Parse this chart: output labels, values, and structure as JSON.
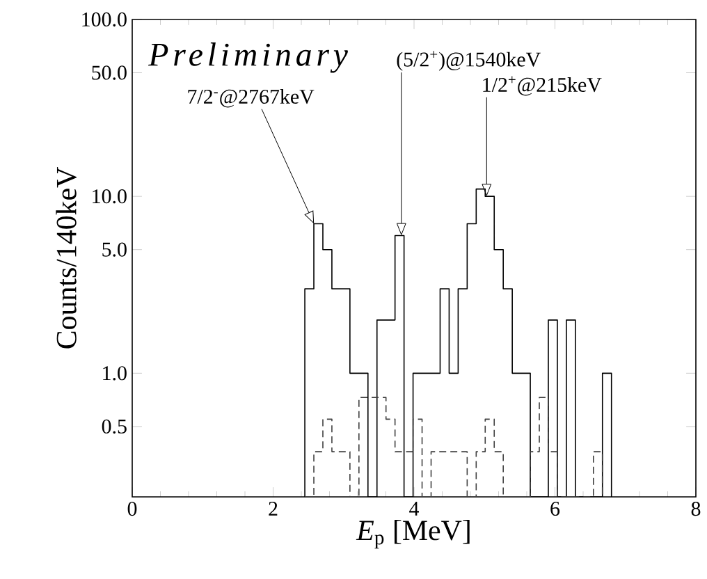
{
  "chart_data": {
    "type": "histogram",
    "xlabel": "*E*$_{p}$ [MeV]",
    "ylabel": "Counts/140keV",
    "log": "y",
    "xlim": [
      0,
      8
    ],
    "xticks": [
      0,
      2,
      4,
      6,
      8
    ],
    "ylim": [
      0.2,
      100
    ],
    "yticks": [
      {
        "value": 0.5,
        "label": "0.5"
      },
      {
        "value": 1,
        "label": "1.0"
      },
      {
        "value": 5,
        "label": "5.0"
      },
      {
        "value": 10,
        "label": "10.0"
      },
      {
        "value": 50,
        "label": "50.0"
      },
      {
        "value": 100,
        "label": "100.0"
      }
    ],
    "bins": [
      2.45,
      2.578,
      2.706,
      2.834,
      2.962,
      3.09,
      3.218,
      3.346,
      3.474,
      3.602,
      3.73,
      3.858,
      3.986,
      4.114,
      4.242,
      4.37,
      4.498,
      4.626,
      4.754,
      4.882,
      5.01,
      5.138,
      5.266,
      5.394,
      5.522,
      5.65,
      5.778,
      5.906,
      6.034,
      6.162,
      6.29,
      6.418,
      6.546,
      6.674,
      6.802
    ],
    "series": [
      {
        "color": "#000000",
        "line_style": "solid",
        "values": [
          3,
          7,
          5,
          3,
          3,
          1,
          1,
          null,
          2,
          2,
          6,
          null,
          1,
          1,
          1,
          3,
          1,
          3,
          7,
          11,
          10,
          5,
          3,
          1,
          1,
          null,
          null,
          2,
          null,
          2,
          null,
          null,
          null,
          1
        ]
      },
      {
        "color": "#404040",
        "line_style": "dashed",
        "values": [
          null,
          0.36,
          0.55,
          0.36,
          0.36,
          null,
          0.73,
          0.73,
          0.73,
          0.55,
          0.36,
          0.36,
          0.55,
          null,
          0.36,
          0.36,
          0.36,
          0.36,
          null,
          0.36,
          0.55,
          0.36,
          null,
          null,
          null,
          0.36,
          0.73,
          0.36,
          null,
          null,
          null,
          null,
          0.36,
          null
        ]
      }
    ],
    "annotations": [
      "Preliminary",
      {
        "text": "7/2$^{-}$@2767keV",
        "x": 2.58,
        "y": 7
      },
      {
        "text": "(5/2$^{+}$)@1540keV",
        "x": 3.82,
        "y": 6
      },
      {
        "text": "1/2$^{+}$@215keV",
        "x": 5.03,
        "y": 10
      }
    ]
  }
}
